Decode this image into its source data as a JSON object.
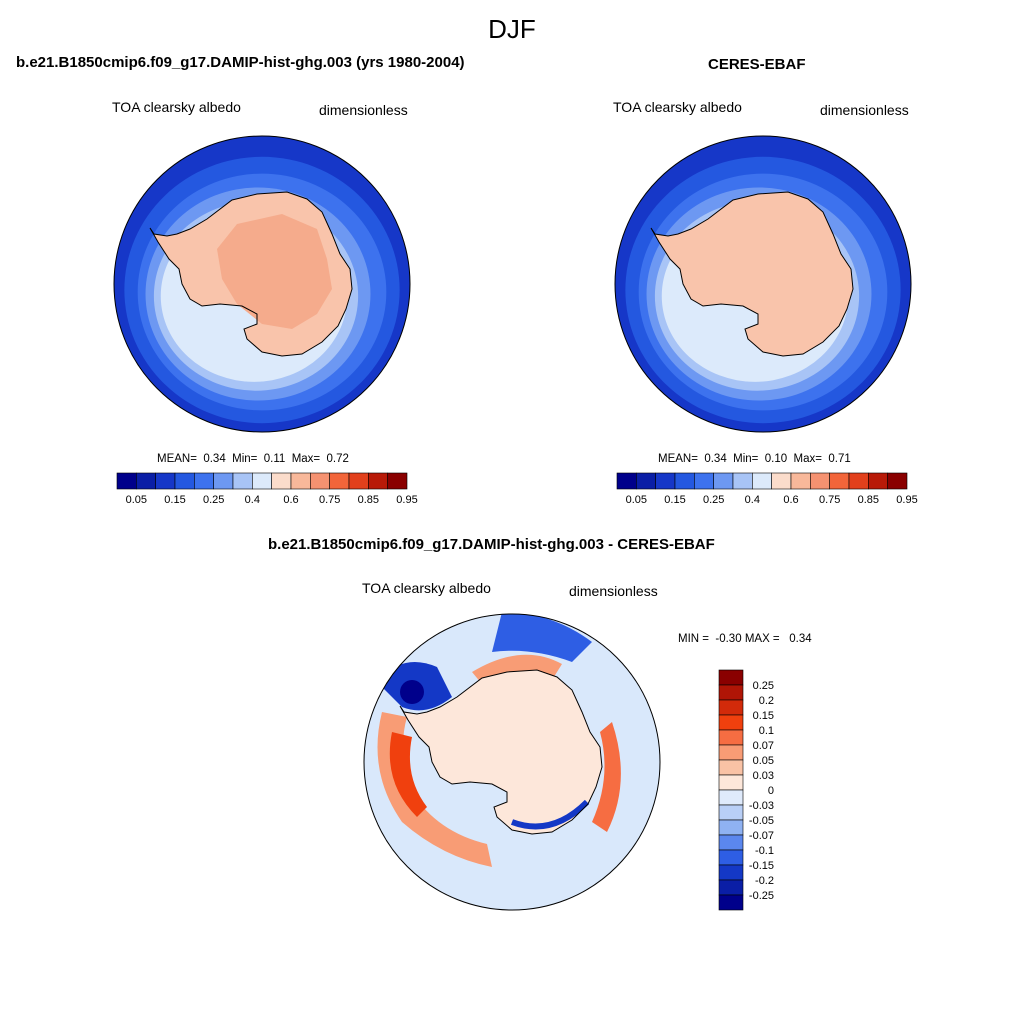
{
  "figure": {
    "season": "DJF"
  },
  "chart_data": [
    {
      "type": "heatmap",
      "projection": "south-polar stereographic",
      "title": "b.e21.B1850cmip6.f09_g17.DAMIP-hist-ghg.003 (yrs 1980-2004)",
      "left_label": "TOA clearsky albedo",
      "right_label": "dimensionless",
      "stats": {
        "mean_label": "MEAN=",
        "mean": "0.34",
        "min_label": "Min=",
        "min": "0.11",
        "max_label": "Max=",
        "max": "0.72"
      },
      "colorbar": {
        "orientation": "horizontal",
        "levels": [
          "0.05",
          "0.1",
          "0.15",
          "0.2",
          "0.25",
          "0.3",
          "0.4",
          "0.5",
          "0.6",
          "0.7",
          "0.75",
          "0.8",
          "0.85",
          "0.9",
          "0.95"
        ],
        "tick_labels": [
          "0.05",
          "0.15",
          "0.25",
          "0.4",
          "0.6",
          "0.75",
          "0.85",
          "0.95"
        ]
      }
    },
    {
      "type": "heatmap",
      "projection": "south-polar stereographic",
      "title": "CERES-EBAF",
      "left_label": "TOA clearsky albedo",
      "right_label": "dimensionless",
      "stats": {
        "mean_label": "MEAN=",
        "mean": "0.34",
        "min_label": "Min=",
        "min": "0.10",
        "max_label": "Max=",
        "max": "0.71"
      },
      "colorbar": {
        "orientation": "horizontal",
        "levels": [
          "0.05",
          "0.1",
          "0.15",
          "0.2",
          "0.25",
          "0.3",
          "0.4",
          "0.5",
          "0.6",
          "0.7",
          "0.75",
          "0.8",
          "0.85",
          "0.9",
          "0.95"
        ],
        "tick_labels": [
          "0.05",
          "0.15",
          "0.25",
          "0.4",
          "0.6",
          "0.75",
          "0.85",
          "0.95"
        ]
      }
    },
    {
      "type": "heatmap",
      "projection": "south-polar stereographic",
      "title": "b.e21.B1850cmip6.f09_g17.DAMIP-hist-ghg.003 - CERES-EBAF",
      "left_label": "TOA clearsky albedo",
      "right_label": "dimensionless",
      "stats": {
        "min_label": "MIN =",
        "min": "-0.30",
        "max_label": "MAX =",
        "max": "0.34"
      },
      "colorbar": {
        "orientation": "vertical",
        "tick_labels": [
          "0.25",
          "0.2",
          "0.15",
          "0.1",
          "0.07",
          "0.05",
          "0.03",
          "0",
          "-0.03",
          "-0.05",
          "-0.07",
          "-0.1",
          "-0.15",
          "-0.2",
          "-0.25"
        ]
      }
    }
  ],
  "palettes": {
    "albedo": [
      "#00008b",
      "#0a1ea6",
      "#1637c8",
      "#2458e0",
      "#3d72ee",
      "#6d98f2",
      "#a8c4f6",
      "#dceafb",
      "#fbdccb",
      "#f8b89a",
      "#f59271",
      "#f2653a",
      "#e2401c",
      "#b81a08",
      "#8a0000"
    ],
    "diff": [
      "#8a0000",
      "#b01506",
      "#d22a0a",
      "#f0400e",
      "#f66d42",
      "#f89c75",
      "#f9c2a5",
      "#fde7da",
      "#dfeafb",
      "#b9cff6",
      "#8fb2f2",
      "#5b87ee",
      "#2e5ee4",
      "#1438c6",
      "#0a1ea6",
      "#00008b"
    ],
    "ice": "#f9c4ab",
    "plateau": "#f5ab8c",
    "ocean_deep": "#1f4fe0",
    "diff_bg": "#d9e8fb",
    "diff_ice": "#fde7da"
  }
}
